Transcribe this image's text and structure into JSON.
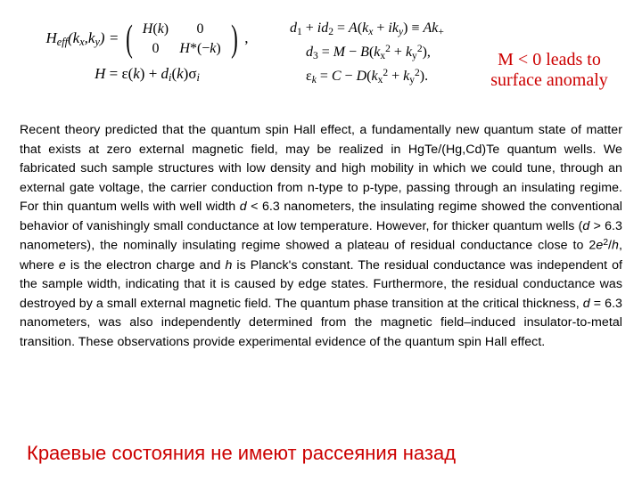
{
  "equations": {
    "left": {
      "lhs": "H<sub>eff</sub>(k<sub>x</sub>,k<sub>y</sub>) =",
      "m11": "<span class='it'>H</span>(<span class='it'>k</span>)",
      "m12": "0",
      "m21": "0",
      "m22": "<span class='it'>H</span>*(−<span class='it'>k</span>)",
      "trail": ",",
      "line2": "<span class='it'>H</span> = ε(<span class='it'>k</span>) + <span class='it'>d<sub>i</sub></span>(<span class='it'>k</span>)σ<sub><span class='it'>i</span></sub>"
    },
    "right": {
      "d12": "<span class='it'>d</span><sub>1</sub> + <span class='it'>id</span><sub>2</sub> = <span class='it'>A</span>(<span class='it'>k<sub>x</sub></span> + <span class='it'>ik<sub>y</sub></span>) ≡ <span class='it'>Ak</span><sub>+</sub>",
      "d3": "<span class='it'>d</span><sub>3</sub> = <span class='it'>M</span> − <span class='it'>B</span>(<span class='it'>k</span><sub>x</sub><sup>2</sup> + <span class='it'>k</span><sub>y</sub><sup>2</sup>),",
      "eps": "ε<sub><span class='it'>k</span></sub> = <span class='it'>C</span> − <span class='it'>D</span>(<span class='it'>k</span><sub>x</sub><sup>2</sup> + <span class='it'>k</span><sub>y</sub><sup>2</sup>)."
    }
  },
  "annotation": {
    "line1": "M < 0 leads to",
    "line2": "surface anomaly"
  },
  "body": "Recent theory predicted that the quantum spin Hall effect, a fundamentally new quantum state of matter that exists at zero external magnetic field, may be realized in HgTe/(Hg,Cd)Te quantum wells. We fabricated such sample structures with low density and high mobility in which we could tune, through an external gate voltage, the carrier conduction from n-type to p-type, passing through an insulating regime. For thin quantum wells with well width <span class='it'>d</span> &lt; 6.3 nanometers, the insulating regime showed the conventional behavior of vanishingly small conductance at low temperature. However, for thicker quantum wells (<span class='it'>d</span> &gt; 6.3 nanometers), the nominally insulating regime showed a plateau of residual conductance close to 2<span class='it'>e</span><sup>2</sup>/<span class='it'>h</span>, where <span class='it'>e</span> is the electron charge and <span class='it'>h</span> is Planck's constant. The residual conductance was independent of the sample width, indicating that it is caused by edge states. Furthermore, the residual conductance was destroyed by a small external magnetic field. The quantum phase transition at the critical thickness, <span class='it'>d</span> = 6.3 nanometers, was also independently determined from the magnetic field–induced insulator-to-metal transition. These observations provide experimental evidence of the quantum spin Hall effect.",
  "footer": "Краевые состояния не имеют рассеяния назад",
  "colors": {
    "text": "#000000",
    "accent": "#cc0000",
    "bg": "#ffffff"
  }
}
